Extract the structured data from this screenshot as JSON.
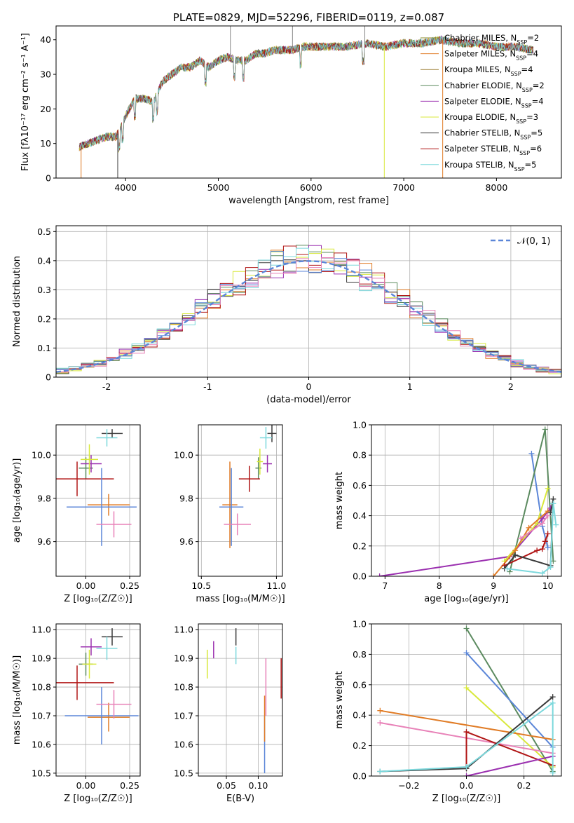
{
  "colors": {
    "palette": [
      "#e07b25",
      "#8d8d2d",
      "#5b8a5f",
      "#9b30b0",
      "#d8e83a",
      "#3b3b3b",
      "#b01515",
      "#7cd8dc",
      "#5b86d8",
      "#e882b8",
      "#9a7a2e"
    ]
  },
  "chart_data": [
    {
      "id": "spectrum",
      "type": "line",
      "title": "PLATE=0829, MJD=52296, FIBERID=0119, z=0.087",
      "xlabel": "wavelength [Angstrom, rest frame]",
      "ylabel": "Flux [fλ10⁻¹⁷ erg cm⁻² s⁻¹ A⁻¹]",
      "xlim": [
        3250,
        8700
      ],
      "ylim": [
        0,
        44
      ],
      "xticks": [
        4000,
        5000,
        6000,
        7000,
        8000
      ],
      "yticks": [
        0,
        10,
        20,
        30,
        40
      ],
      "grid": false,
      "legend_position": "right",
      "series": [
        {
          "name": "Chabrier MILES, N_SSP=2",
          "color": "#8d8d2d"
        },
        {
          "name": "Salpeter MILES, N_SSP=4",
          "color": "#e07b25"
        },
        {
          "name": "Kroupa MILES, N_SSP=4",
          "color": "#9a7a2e"
        },
        {
          "name": "Chabrier ELODIE, N_SSP=2",
          "color": "#5b8a5f"
        },
        {
          "name": "Salpeter ELODIE, N_SSP=4",
          "color": "#9b30b0"
        },
        {
          "name": "Kroupa ELODIE, N_SSP=3",
          "color": "#d8e83a"
        },
        {
          "name": "Chabrier STELIB, N_SSP=5",
          "color": "#3b3b3b"
        },
        {
          "name": "Salpeter STELIB, N_SSP=6",
          "color": "#b01515"
        },
        {
          "name": "Kroupa STELIB, N_SSP=5",
          "color": "#7cd8dc"
        }
      ],
      "continuum": {
        "x": [
          3500,
          3600,
          3700,
          3800,
          3900,
          4000,
          4100,
          4200,
          4300,
          4400,
          4500,
          4600,
          4700,
          4800,
          4900,
          5000,
          5100,
          5200,
          5300,
          5400,
          5500,
          5600,
          5700,
          5800,
          5900,
          6000,
          6200,
          6400,
          6600,
          6800,
          7000,
          7200,
          7400,
          7600,
          7800,
          8000,
          8200,
          8400
        ],
        "y": [
          9,
          10,
          11,
          12,
          12,
          18,
          23,
          23,
          22,
          28,
          30,
          32,
          32,
          34,
          32,
          34,
          35,
          34,
          34,
          36,
          36,
          37,
          37,
          37,
          38,
          38,
          38,
          38,
          39,
          38,
          39,
          39,
          40,
          39,
          39,
          38,
          38,
          37
        ]
      }
    },
    {
      "id": "residuals",
      "type": "line",
      "xlabel": "(data-model)/error",
      "ylabel": "Normed distribution",
      "xlim": [
        -2.5,
        2.5
      ],
      "ylim": [
        0,
        0.52
      ],
      "xticks": [
        -2,
        -1,
        0,
        1,
        2
      ],
      "yticks": [
        0.0,
        0.1,
        0.2,
        0.3,
        0.4,
        0.5
      ],
      "grid": true,
      "legend_position": "top-right",
      "series": [
        {
          "name": "𝒩(0, 1)",
          "color": "#5b86d8",
          "style": "dashed"
        }
      ]
    },
    {
      "id": "age-vs-Z",
      "type": "scatter",
      "xlabel": "Z [log₁₀(Z/Z☉)]",
      "ylabel": "age  [log₁₀(age/yr)]",
      "xlim": [
        -0.17,
        0.31
      ],
      "ylim": [
        9.44,
        10.14
      ],
      "xticks": [
        0.0,
        0.25
      ],
      "xticklabels": [
        "0.00",
        "0.25"
      ],
      "yticks": [
        9.6,
        9.8,
        10.0
      ],
      "yticklabels": [
        "9.6",
        "9.8",
        "10.0"
      ],
      "grid": true,
      "points": [
        {
          "x": 0.0,
          "y": 9.94,
          "ex": 0.04,
          "ey": 0.05,
          "color": "#5b8a5f"
        },
        {
          "x": 0.03,
          "y": 9.96,
          "ex": 0.06,
          "ey": 0.04,
          "color": "#9b30b0"
        },
        {
          "x": 0.02,
          "y": 9.98,
          "ex": 0.05,
          "ey": 0.07,
          "color": "#d8e83a"
        },
        {
          "x": 0.15,
          "y": 10.1,
          "ex": 0.06,
          "ey": 0.02,
          "color": "#3b3b3b"
        },
        {
          "x": 0.12,
          "y": 10.08,
          "ex": 0.06,
          "ey": 0.04,
          "color": "#7cd8dc"
        },
        {
          "x": -0.05,
          "y": 9.89,
          "ex": 0.21,
          "ey": 0.08,
          "color": "#b01515"
        },
        {
          "x": 0.13,
          "y": 9.77,
          "ex": 0.12,
          "ey": 0.05,
          "color": "#e07b25"
        },
        {
          "x": 0.09,
          "y": 9.76,
          "ex": 0.2,
          "ey": 0.18,
          "color": "#5b86d8"
        },
        {
          "x": 0.16,
          "y": 9.68,
          "ex": 0.1,
          "ey": 0.06,
          "color": "#e882b8"
        }
      ]
    },
    {
      "id": "age-vs-mass",
      "type": "scatter",
      "xlabel": "mass [log₁₀(M/M☉)]",
      "ylabel": "",
      "xlim": [
        10.48,
        11.04
      ],
      "ylim": [
        9.44,
        10.14
      ],
      "xticks": [
        10.5,
        11.0
      ],
      "xticklabels": [
        "10.5",
        "11.0"
      ],
      "yticks": [
        9.6,
        9.8,
        10.0
      ],
      "yticklabels": [
        "9.6",
        "9.8",
        "10.0"
      ],
      "grid": true,
      "points": [
        {
          "x": 10.97,
          "y": 10.1,
          "ex": 0.03,
          "ey": 0.04,
          "color": "#3b3b3b"
        },
        {
          "x": 10.93,
          "y": 10.08,
          "ex": 0.04,
          "ey": 0.05,
          "color": "#7cd8dc"
        },
        {
          "x": 10.94,
          "y": 9.96,
          "ex": 0.03,
          "ey": 0.04,
          "color": "#9b30b0"
        },
        {
          "x": 10.88,
          "y": 9.94,
          "ex": 0.02,
          "ey": 0.05,
          "color": "#5b8a5f"
        },
        {
          "x": 10.89,
          "y": 9.97,
          "ex": 0.02,
          "ey": 0.06,
          "color": "#d8e83a"
        },
        {
          "x": 10.82,
          "y": 9.89,
          "ex": 0.07,
          "ey": 0.06,
          "color": "#b01515"
        },
        {
          "x": 10.69,
          "y": 9.77,
          "ex": 0.05,
          "ey": 0.2,
          "color": "#e07b25"
        },
        {
          "x": 10.7,
          "y": 9.76,
          "ex": 0.08,
          "ey": 0.18,
          "color": "#5b86d8"
        },
        {
          "x": 10.74,
          "y": 9.68,
          "ex": 0.09,
          "ey": 0.05,
          "color": "#e882b8"
        }
      ]
    },
    {
      "id": "massweight-vs-age",
      "type": "line",
      "xlabel": "age  [log₁₀(age/yr)]",
      "ylabel": "mass weight",
      "xlim": [
        6.75,
        10.25
      ],
      "ylim": [
        0,
        1.0
      ],
      "xticks": [
        7,
        8,
        9,
        10
      ],
      "yticks": [
        0.0,
        0.2,
        0.4,
        0.6,
        0.8,
        1.0
      ],
      "yticklabels": [
        "0.0",
        "0.2",
        "0.4",
        "0.6",
        "0.8",
        "1.0"
      ],
      "grid": true,
      "series": [
        {
          "color": "#5b86d8",
          "x": [
            9.7,
            9.9,
            10.0
          ],
          "y": [
            0.81,
            0.33,
            0.19
          ]
        },
        {
          "color": "#5b8a5f",
          "x": [
            9.3,
            9.95,
            10.1
          ],
          "y": [
            0.03,
            0.97,
            0.1
          ]
        },
        {
          "color": "#9b30b0",
          "x": [
            6.9,
            9.3,
            9.9,
            10.05
          ],
          "y": [
            0.0,
            0.13,
            0.38,
            0.45
          ]
        },
        {
          "color": "#d8e83a",
          "x": [
            9.2,
            9.8,
            10.0
          ],
          "y": [
            0.1,
            0.35,
            0.58
          ]
        },
        {
          "color": "#e07b25",
          "x": [
            9.0,
            9.4,
            9.65,
            10.0
          ],
          "y": [
            0.0,
            0.17,
            0.32,
            0.43
          ]
        },
        {
          "color": "#b01515",
          "x": [
            9.2,
            9.8,
            9.9,
            9.95,
            10.0
          ],
          "y": [
            0.07,
            0.17,
            0.18,
            0.23,
            0.28
          ]
        },
        {
          "color": "#3b3b3b",
          "x": [
            9.2,
            9.4,
            10.05,
            10.1,
            10.05
          ],
          "y": [
            0.05,
            0.14,
            0.07,
            0.51,
            0.42
          ]
        },
        {
          "color": "#7cd8dc",
          "x": [
            9.25,
            9.9,
            10.05,
            10.1,
            10.15
          ],
          "y": [
            0.05,
            0.02,
            0.06,
            0.48,
            0.34
          ]
        },
        {
          "color": "#e882b8",
          "x": [
            9.5,
            9.9,
            10.0
          ],
          "y": [
            0.25,
            0.35,
            0.4
          ]
        }
      ]
    },
    {
      "id": "mass-vs-Z",
      "type": "scatter",
      "xlabel": "Z [log₁₀(Z/Z☉)]",
      "ylabel": "mass [log₁₀(M/M☉)]",
      "xlim": [
        -0.17,
        0.31
      ],
      "ylim": [
        10.49,
        11.02
      ],
      "xticks": [
        0.0,
        0.25
      ],
      "xticklabels": [
        "0.00",
        "0.25"
      ],
      "yticks": [
        10.5,
        10.6,
        10.7,
        10.8,
        10.9,
        11.0
      ],
      "yticklabels": [
        "10.5",
        "10.6",
        "10.7",
        "10.8",
        "10.9",
        "11.0"
      ],
      "grid": true,
      "points": [
        {
          "x": 0.15,
          "y": 10.975,
          "ex": 0.06,
          "ey": 0.03,
          "color": "#3b3b3b"
        },
        {
          "x": 0.12,
          "y": 10.935,
          "ex": 0.06,
          "ey": 0.04,
          "color": "#7cd8dc"
        },
        {
          "x": 0.03,
          "y": 10.94,
          "ex": 0.06,
          "ey": 0.03,
          "color": "#9b30b0"
        },
        {
          "x": 0.0,
          "y": 10.88,
          "ex": 0.04,
          "ey": 0.04,
          "color": "#5b8a5f"
        },
        {
          "x": 0.02,
          "y": 10.88,
          "ex": 0.04,
          "ey": 0.05,
          "color": "#d8e83a"
        },
        {
          "x": -0.05,
          "y": 10.815,
          "ex": 0.21,
          "ey": 0.06,
          "color": "#b01515"
        },
        {
          "x": 0.13,
          "y": 10.695,
          "ex": 0.12,
          "ey": 0.05,
          "color": "#e07b25"
        },
        {
          "x": 0.09,
          "y": 10.7,
          "ex": 0.21,
          "ey": 0.1,
          "color": "#5b86d8"
        },
        {
          "x": 0.16,
          "y": 10.74,
          "ex": 0.1,
          "ey": 0.05,
          "color": "#e882b8"
        }
      ]
    },
    {
      "id": "mass-vs-ebv",
      "type": "scatter",
      "xlabel": "E(B-V)",
      "ylabel": "",
      "xlim": [
        0.006,
        0.138
      ],
      "ylim": [
        10.49,
        11.02
      ],
      "xticks": [
        0.05,
        0.1
      ],
      "xticklabels": [
        "0.05",
        "0.10"
      ],
      "yticks": [
        10.5,
        10.6,
        10.7,
        10.8,
        10.9,
        11.0
      ],
      "yticklabels": [
        "10.5",
        "10.6",
        "10.7",
        "10.8",
        "10.9",
        "11.0"
      ],
      "grid": true,
      "points": [
        {
          "x": 0.02,
          "y": 10.88,
          "ex": 0,
          "ey": 0.05,
          "color": "#d8e83a"
        },
        {
          "x": 0.03,
          "y": 10.93,
          "ex": 0,
          "ey": 0.03,
          "color": "#9b30b0"
        },
        {
          "x": 0.065,
          "y": 10.975,
          "ex": 0,
          "ey": 0.03,
          "color": "#3b3b3b"
        },
        {
          "x": 0.065,
          "y": 10.91,
          "ex": 0,
          "ey": 0.03,
          "color": "#7cd8dc"
        },
        {
          "x": 0.11,
          "y": 10.6,
          "ex": 0,
          "ey": 0.1,
          "color": "#5b86d8"
        },
        {
          "x": 0.11,
          "y": 10.69,
          "ex": 0,
          "ey": 0.08,
          "color": "#e07b25"
        },
        {
          "x": 0.112,
          "y": 10.8,
          "ex": 0,
          "ey": 0.1,
          "color": "#e882b8"
        },
        {
          "x": 0.136,
          "y": 10.83,
          "ex": 0,
          "ey": 0.07,
          "color": "#b01515"
        }
      ]
    },
    {
      "id": "massweight-vs-Z",
      "type": "line",
      "xlabel": "Z [log₁₀(Z/Z☉)]",
      "ylabel": "mass weight",
      "xlim": [
        -0.33,
        0.33
      ],
      "ylim": [
        0,
        1.0
      ],
      "xticks": [
        -0.2,
        0.0,
        0.2
      ],
      "xticklabels": [
        "−0.2",
        "0.0",
        "0.2"
      ],
      "yticks": [
        0.0,
        0.2,
        0.4,
        0.6,
        0.8,
        1.0
      ],
      "yticklabels": [
        "0.0",
        "0.2",
        "0.4",
        "0.6",
        "0.8",
        "1.0"
      ],
      "grid": true,
      "series": [
        {
          "color": "#5b8a5f",
          "x": [
            0.0,
            0.3
          ],
          "y": [
            0.97,
            0.03
          ]
        },
        {
          "color": "#5b86d8",
          "x": [
            0.0,
            0.3
          ],
          "y": [
            0.81,
            0.19
          ]
        },
        {
          "color": "#d8e83a",
          "x": [
            0.0,
            0.3
          ],
          "y": [
            0.58,
            0.06
          ]
        },
        {
          "color": "#e07b25",
          "x": [
            -0.3,
            0.3
          ],
          "y": [
            0.43,
            0.24
          ]
        },
        {
          "color": "#e882b8",
          "x": [
            -0.3,
            0.3
          ],
          "y": [
            0.35,
            0.15
          ]
        },
        {
          "color": "#b01515",
          "x": [
            0.0,
            0.0,
            0.3
          ],
          "y": [
            0.05,
            0.29,
            0.07
          ]
        },
        {
          "color": "#3b3b3b",
          "x": [
            -0.3,
            0.0,
            0.3
          ],
          "y": [
            0.03,
            0.05,
            0.52
          ]
        },
        {
          "color": "#9b30b0",
          "x": [
            0.0,
            0.3
          ],
          "y": [
            0.0,
            0.13
          ]
        },
        {
          "color": "#7cd8dc",
          "x": [
            -0.3,
            0.0,
            0.3,
            0.3
          ],
          "y": [
            0.03,
            0.06,
            0.48,
            0.02
          ]
        }
      ]
    }
  ]
}
